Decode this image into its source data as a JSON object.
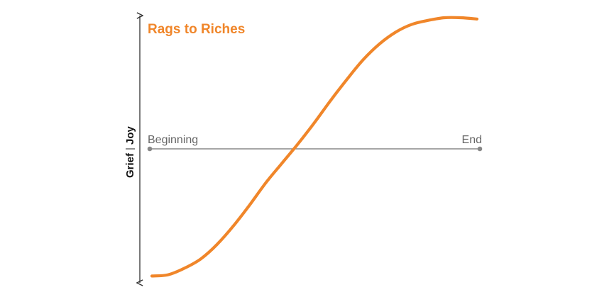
{
  "chart_data": {
    "type": "line",
    "title": "Rags to Riches",
    "xlabel": "",
    "ylabel_positive": "Joy",
    "ylabel_negative": "Grief",
    "x_start_label": "Beginning",
    "x_end_label": "End",
    "xlim": [
      0,
      1
    ],
    "ylim": [
      -1,
      1
    ],
    "grid": false,
    "series": [
      {
        "x": [
          0.0,
          0.05,
          0.1,
          0.15,
          0.2,
          0.25,
          0.3,
          0.35,
          0.4,
          0.45,
          0.5,
          0.55,
          0.6,
          0.65,
          0.7,
          0.75,
          0.8,
          0.85,
          0.9,
          0.95,
          1.0
        ],
        "y": [
          -0.97,
          -0.96,
          -0.91,
          -0.84,
          -0.73,
          -0.59,
          -0.43,
          -0.26,
          -0.11,
          0.04,
          0.2,
          0.37,
          0.53,
          0.68,
          0.8,
          0.89,
          0.95,
          0.98,
          1.0,
          1.0,
          0.99
        ]
      }
    ],
    "colors": {
      "line": "#F0862A",
      "title": "#F0862A",
      "axis": "#333333",
      "baseline": "#888888"
    }
  }
}
